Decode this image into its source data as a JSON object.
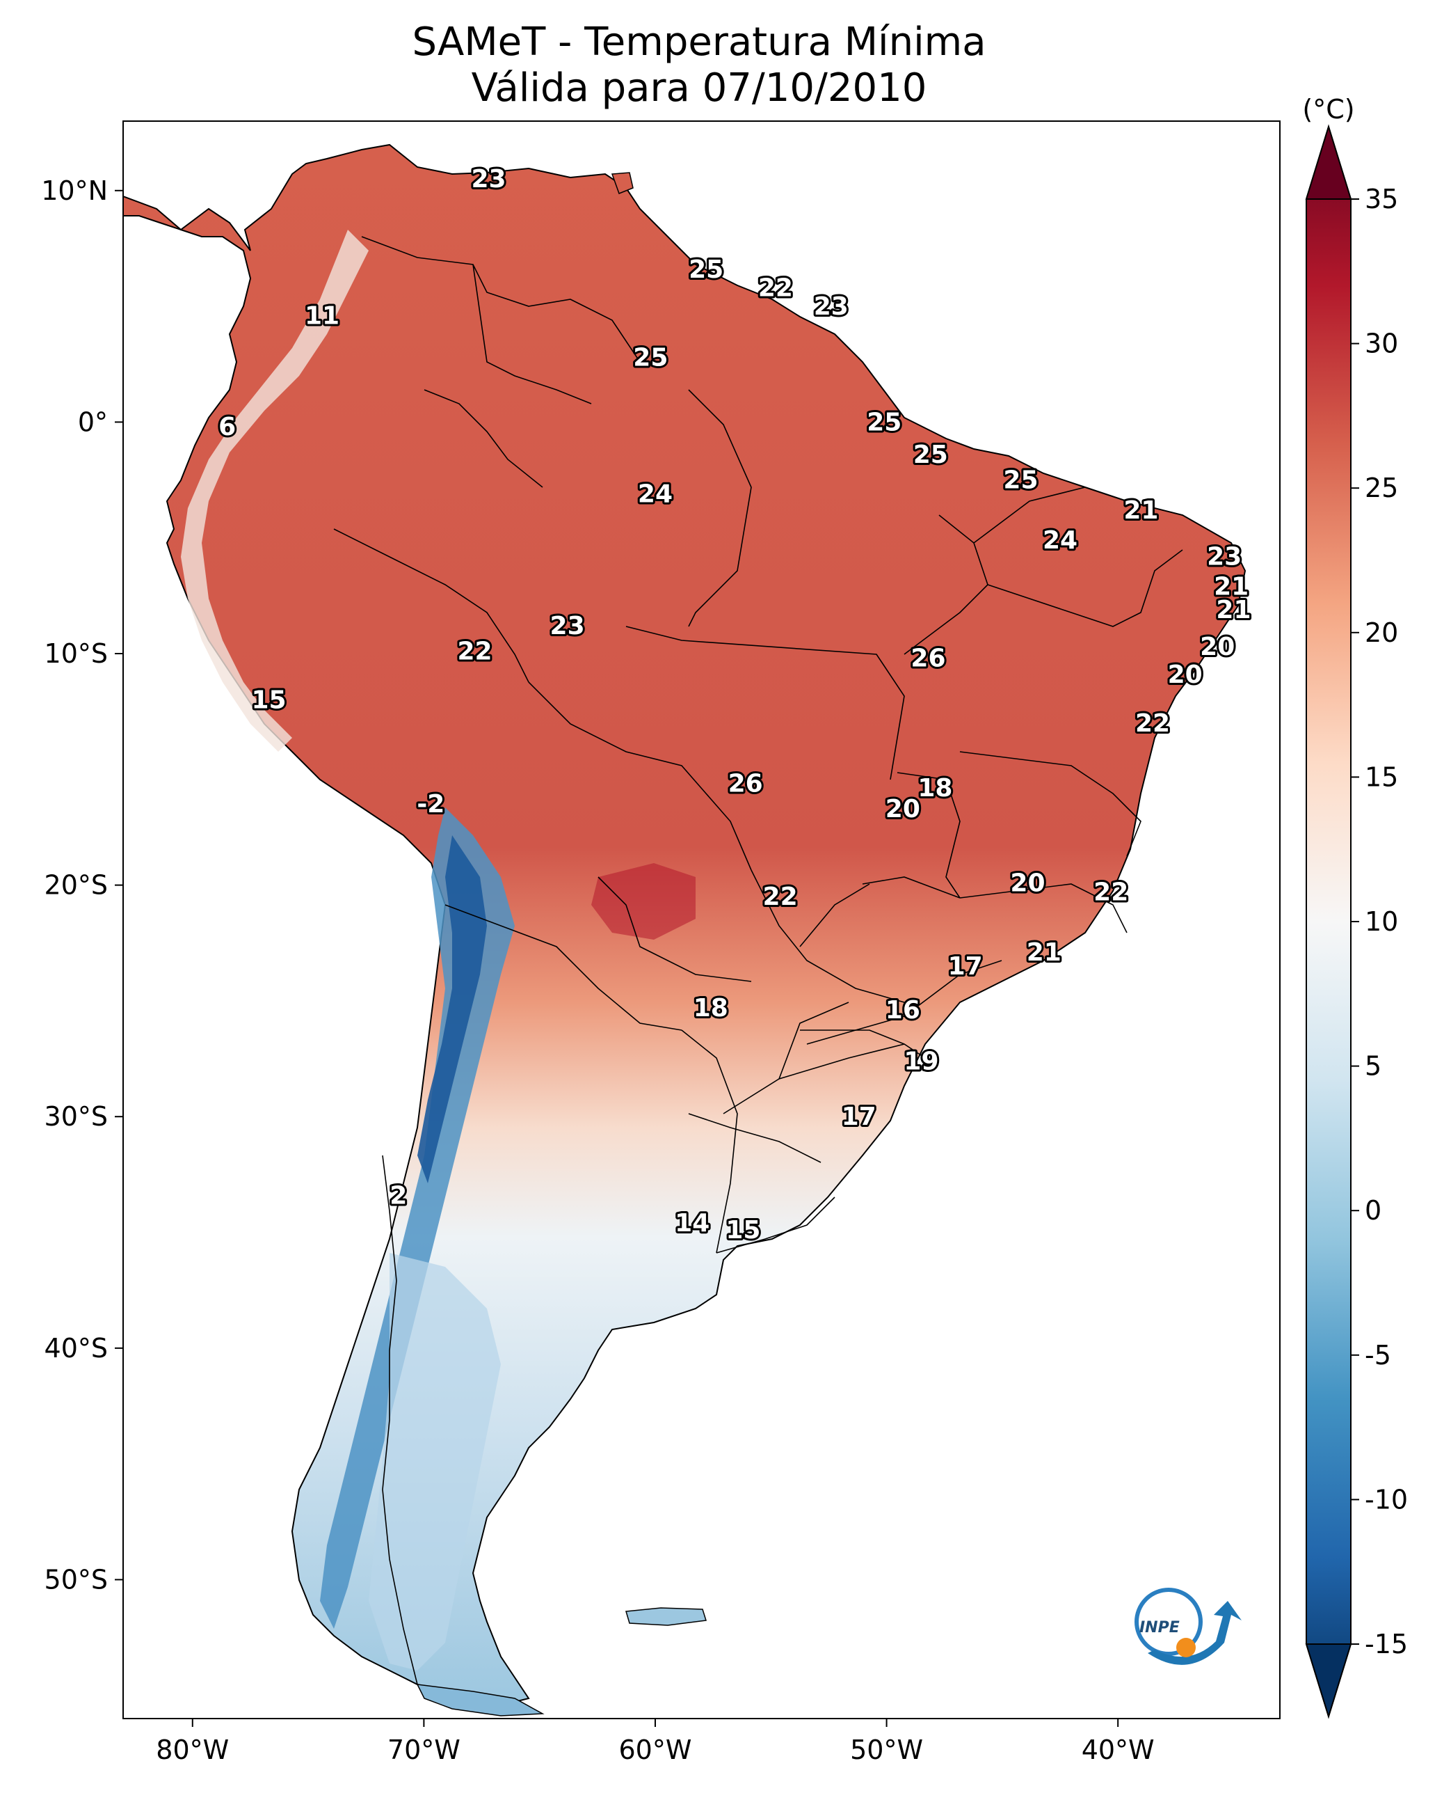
{
  "title": {
    "line1": "SAMeT - Temperatura Mínima",
    "line2": "Válida para 07/10/2010"
  },
  "map": {
    "lat_ticks": [
      "10°N",
      "0°",
      "10°S",
      "20°S",
      "30°S",
      "40°S",
      "50°S"
    ],
    "lon_ticks": [
      "80°W",
      "70°W",
      "60°W",
      "50°W",
      "40°W"
    ],
    "colormap": "RdBu_r",
    "station_labels": [
      {
        "value": "23",
        "lon": -67.2,
        "lat": 10.5
      },
      {
        "value": "11",
        "lon": -74.4,
        "lat": 4.6
      },
      {
        "value": "25",
        "lon": -57.8,
        "lat": 6.6
      },
      {
        "value": "22",
        "lon": -54.8,
        "lat": 5.8
      },
      {
        "value": "23",
        "lon": -52.4,
        "lat": 5.0
      },
      {
        "value": "25",
        "lon": -60.2,
        "lat": 2.8
      },
      {
        "value": "6",
        "lon": -78.5,
        "lat": -0.2
      },
      {
        "value": "25",
        "lon": -50.1,
        "lat": 0.0
      },
      {
        "value": "25",
        "lon": -48.1,
        "lat": -1.4
      },
      {
        "value": "24",
        "lon": -60.0,
        "lat": -3.1
      },
      {
        "value": "25",
        "lon": -44.2,
        "lat": -2.5
      },
      {
        "value": "21",
        "lon": -39.0,
        "lat": -3.8
      },
      {
        "value": "24",
        "lon": -42.5,
        "lat": -5.1
      },
      {
        "value": "23",
        "lon": -35.4,
        "lat": -5.8
      },
      {
        "value": "21",
        "lon": -35.1,
        "lat": -7.1
      },
      {
        "value": "21",
        "lon": -35.0,
        "lat": -8.1
      },
      {
        "value": "23",
        "lon": -63.8,
        "lat": -8.8
      },
      {
        "value": "22",
        "lon": -67.8,
        "lat": -9.9
      },
      {
        "value": "20",
        "lon": -35.7,
        "lat": -9.7
      },
      {
        "value": "26",
        "lon": -48.2,
        "lat": -10.2
      },
      {
        "value": "20",
        "lon": -37.1,
        "lat": -10.9
      },
      {
        "value": "15",
        "lon": -76.7,
        "lat": -12.0
      },
      {
        "value": "22",
        "lon": -38.5,
        "lat": -13.0
      },
      {
        "value": "26",
        "lon": -56.1,
        "lat": -15.6
      },
      {
        "value": "18",
        "lon": -47.9,
        "lat": -15.8
      },
      {
        "value": "-2",
        "lon": -69.7,
        "lat": -16.5
      },
      {
        "value": "20",
        "lon": -49.3,
        "lat": -16.7
      },
      {
        "value": "20",
        "lon": -43.9,
        "lat": -19.9
      },
      {
        "value": "22",
        "lon": -54.6,
        "lat": -20.5
      },
      {
        "value": "22",
        "lon": -40.3,
        "lat": -20.3
      },
      {
        "value": "21",
        "lon": -43.2,
        "lat": -22.9
      },
      {
        "value": "17",
        "lon": -46.6,
        "lat": -23.5
      },
      {
        "value": "18",
        "lon": -57.6,
        "lat": -25.3
      },
      {
        "value": "16",
        "lon": -49.3,
        "lat": -25.4
      },
      {
        "value": "19",
        "lon": -48.5,
        "lat": -27.6
      },
      {
        "value": "17",
        "lon": -51.2,
        "lat": -30.0
      },
      {
        "value": "2",
        "lon": -71.1,
        "lat": -33.4
      },
      {
        "value": "14",
        "lon": -58.4,
        "lat": -34.6
      },
      {
        "value": "15",
        "lon": -56.2,
        "lat": -34.9
      }
    ]
  },
  "colorbar": {
    "unit": "(°C)",
    "min": -15,
    "max": 35,
    "ticks": [
      "35",
      "30",
      "25",
      "20",
      "15",
      "10",
      "5",
      "0",
      "-5",
      "-10",
      "-15"
    ],
    "colors": [
      "#053061",
      "#2166ac",
      "#4393c3",
      "#92c5de",
      "#d1e5f0",
      "#f7f7f7",
      "#fddbc7",
      "#f4a582",
      "#d6604d",
      "#b2182b",
      "#67001f"
    ]
  },
  "logo": {
    "text": "INPE"
  }
}
